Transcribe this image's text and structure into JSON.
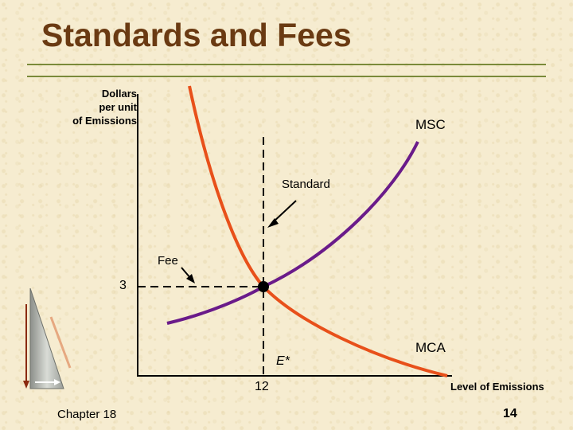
{
  "slide": {
    "title": "Standards and Fees",
    "chapter": "Chapter 18",
    "page_number": "14",
    "colors": {
      "title": "#6a3a12",
      "rule": "#7a8a3a",
      "background": "#f6ecd0"
    }
  },
  "diagram": {
    "y_axis_label_lines": [
      "Dollars",
      "per unit",
      "of Emissions"
    ],
    "x_axis_label": "Level of Emissions",
    "curves": [
      {
        "label": "MSC",
        "color": "#6a1b8a"
      },
      {
        "label": "MCA",
        "color": "#e8501a"
      }
    ],
    "annotations": {
      "standard": "Standard",
      "fee": "Fee",
      "equilibrium": "E*"
    },
    "ticks": {
      "y_value": "3",
      "x_value": "12"
    }
  }
}
